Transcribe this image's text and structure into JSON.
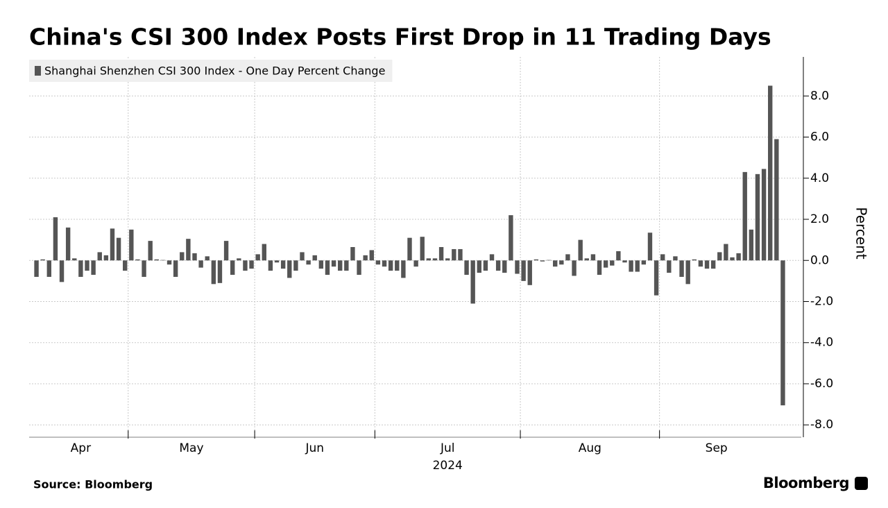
{
  "chart_data": {
    "type": "bar",
    "title": "China's CSI 300 Index Posts First Drop in 11 Trading Days",
    "y_axis_label": "Percent",
    "x_year_label": "2024",
    "source": "Source: Bloomberg",
    "brand": "Bloomberg",
    "categories": [
      "Apr",
      "Apr",
      "Apr",
      "Apr",
      "Apr",
      "Apr",
      "Apr",
      "Apr",
      "Apr",
      "Apr",
      "Apr",
      "Apr",
      "Apr",
      "Apr",
      "Apr",
      "May",
      "May",
      "May",
      "May",
      "May",
      "May",
      "May",
      "May",
      "May",
      "May",
      "May",
      "May",
      "May",
      "May",
      "May",
      "May",
      "May",
      "May",
      "May",
      "May",
      "Jun",
      "Jun",
      "Jun",
      "Jun",
      "Jun",
      "Jun",
      "Jun",
      "Jun",
      "Jun",
      "Jun",
      "Jun",
      "Jun",
      "Jun",
      "Jun",
      "Jun",
      "Jun",
      "Jun",
      "Jun",
      "Jun",
      "Jul",
      "Jul",
      "Jul",
      "Jul",
      "Jul",
      "Jul",
      "Jul",
      "Jul",
      "Jul",
      "Jul",
      "Jul",
      "Jul",
      "Jul",
      "Jul",
      "Jul",
      "Jul",
      "Jul",
      "Jul",
      "Jul",
      "Jul",
      "Jul",
      "Jul",
      "Jul",
      "Aug",
      "Aug",
      "Aug",
      "Aug",
      "Aug",
      "Aug",
      "Aug",
      "Aug",
      "Aug",
      "Aug",
      "Aug",
      "Aug",
      "Aug",
      "Aug",
      "Aug",
      "Aug",
      "Aug",
      "Aug",
      "Aug",
      "Aug",
      "Aug",
      "Aug",
      "Sep",
      "Sep",
      "Sep",
      "Sep",
      "Sep",
      "Sep",
      "Sep",
      "Sep",
      "Sep",
      "Sep",
      "Sep",
      "Sep",
      "Sep",
      "Sep",
      "Sep",
      "Sep",
      "Sep",
      "Sep",
      null,
      null
    ],
    "series": [
      {
        "name": "Shanghai Shenzhen CSI 300 Index - One Day Percent Change",
        "color": "#555555",
        "values": [
          -0.8,
          0.05,
          -0.8,
          2.1,
          -1.05,
          1.6,
          0.1,
          -0.8,
          -0.5,
          -0.7,
          0.4,
          0.25,
          1.55,
          1.1,
          -0.5,
          1.5,
          0.05,
          -0.8,
          0.95,
          0.05,
          0.02,
          -0.2,
          -0.8,
          0.4,
          1.05,
          0.35,
          -0.35,
          0.2,
          -1.15,
          -1.1,
          0.95,
          -0.7,
          0.1,
          -0.5,
          -0.4,
          0.3,
          0.8,
          -0.5,
          -0.1,
          -0.4,
          -0.85,
          -0.5,
          0.4,
          -0.2,
          0.25,
          -0.4,
          -0.7,
          -0.3,
          -0.5,
          -0.5,
          0.65,
          -0.7,
          0.25,
          0.5,
          -0.2,
          -0.3,
          -0.5,
          -0.5,
          -0.85,
          1.1,
          -0.3,
          1.15,
          0.1,
          0.1,
          0.65,
          0.1,
          0.55,
          0.55,
          -0.7,
          -2.1,
          -0.6,
          -0.5,
          0.3,
          -0.5,
          -0.6,
          2.2,
          -0.65,
          -1.0,
          -1.2,
          0.05,
          -0.05,
          0.02,
          -0.3,
          -0.2,
          0.3,
          -0.75,
          1.0,
          0.1,
          0.3,
          -0.7,
          -0.35,
          -0.25,
          0.45,
          -0.1,
          -0.55,
          -0.55,
          -0.2,
          1.35,
          -1.7,
          0.3,
          -0.6,
          0.2,
          -0.8,
          -1.15,
          0.05,
          -0.3,
          -0.4,
          -0.4,
          0.4,
          0.8,
          0.15,
          0.35,
          4.3,
          1.5,
          4.2,
          4.45,
          8.5,
          5.9,
          -7.05
        ]
      }
    ],
    "ylim": [
      -8.6,
      9.9
    ],
    "yticks": [
      {
        "value": -8,
        "label": "-8.0"
      },
      {
        "value": -6,
        "label": "-6.0"
      },
      {
        "value": -4,
        "label": "-4.0"
      },
      {
        "value": -2,
        "label": "-2.0"
      },
      {
        "value": 0,
        "label": "0.0"
      },
      {
        "value": 2,
        "label": "2.0"
      },
      {
        "value": 4,
        "label": "4.0"
      },
      {
        "value": 6,
        "label": "6.0"
      },
      {
        "value": 8,
        "label": "8.0"
      }
    ],
    "grid": true,
    "legend": "top-left"
  }
}
